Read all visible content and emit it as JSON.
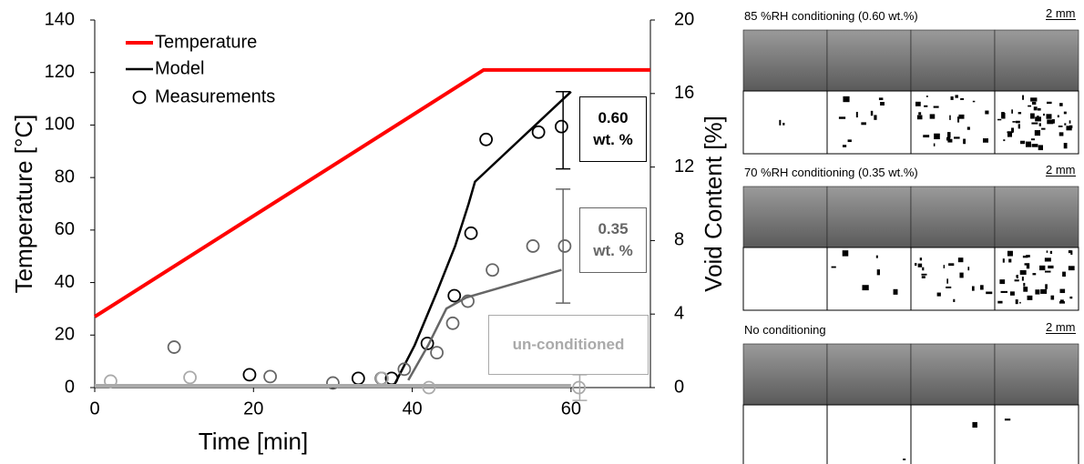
{
  "chart_data": {
    "type": "line",
    "xlabel": "Time [min]",
    "ylabel": "Temperature [°C]",
    "y2label": "Void Content [%]",
    "xlim": [
      0,
      70
    ],
    "xticks": [
      0,
      20,
      40,
      60
    ],
    "ylim": [
      0,
      140
    ],
    "yticks": [
      0,
      20,
      40,
      60,
      80,
      100,
      120,
      140
    ],
    "y2lim": [
      0,
      20
    ],
    "y2ticks": [
      0,
      4,
      8,
      12,
      16,
      20
    ],
    "temperature": {
      "name": "Temperature",
      "color": "#ff0000",
      "x": [
        0,
        49,
        70
      ],
      "values": [
        27,
        121,
        121
      ]
    },
    "legend": {
      "model": "Model",
      "measurements": "Measurements",
      "color": "#000000"
    },
    "groups": [
      {
        "label": "0.60 wt. %",
        "color": "#000000",
        "model": {
          "x": [
            37.8,
            40.3,
            43.1,
            45.4,
            47.1,
            47.9,
            60
          ],
          "values": [
            0.2,
            2.3,
            5.2,
            7.7,
            10,
            11.2,
            16.1
          ]
        },
        "measurements": {
          "x": [
            19.5,
            33.2,
            37.4,
            41.9,
            45.3,
            47.4,
            49.3,
            55.9,
            58.8
          ],
          "values": [
            0.7,
            0.5,
            0.5,
            2.4,
            5,
            8.4,
            13.5,
            13.9,
            14.2
          ]
        },
        "error": {
          "x": 59,
          "value": 14,
          "error": 2.1
        }
      },
      {
        "label": "0.35 wt. %",
        "color": "#666666",
        "model": {
          "x": [
            39.5,
            42,
            44.3,
            46.8,
            58.8
          ],
          "values": [
            0.4,
            2.3,
            4.3,
            4.9,
            6.4
          ]
        },
        "measurements": {
          "x": [
            10,
            22.1,
            30,
            36.1,
            39,
            43.1,
            45.1,
            47,
            50.1,
            55.2,
            59.2
          ],
          "values": [
            2.2,
            0.6,
            0.25,
            0.5,
            1,
            1.9,
            3.5,
            4.7,
            6.4,
            7.7,
            7.7
          ]
        },
        "error": {
          "x": 59,
          "value": 7.7,
          "error": 3.1
        }
      },
      {
        "label": "un-conditioned",
        "color": "#aaaaaa",
        "model": {
          "x": [
            0,
            60
          ],
          "values": [
            0.1,
            0.1
          ]
        },
        "measurements": {
          "x": [
            2,
            12,
            36.2,
            42.1,
            61
          ],
          "values": [
            0.35,
            0.55,
            0.5,
            0,
            0
          ]
        },
        "error": {
          "x": 61.1,
          "value": 0,
          "error": 0.7
        }
      }
    ]
  },
  "panels": [
    {
      "title": "85 %RH conditioning (0.60 wt.%)",
      "scale": "2 mm"
    },
    {
      "title": "70 %RH conditioning (0.35 wt.%)",
      "scale": "2 mm"
    },
    {
      "title": "No conditioning",
      "scale": "2 mm"
    }
  ]
}
